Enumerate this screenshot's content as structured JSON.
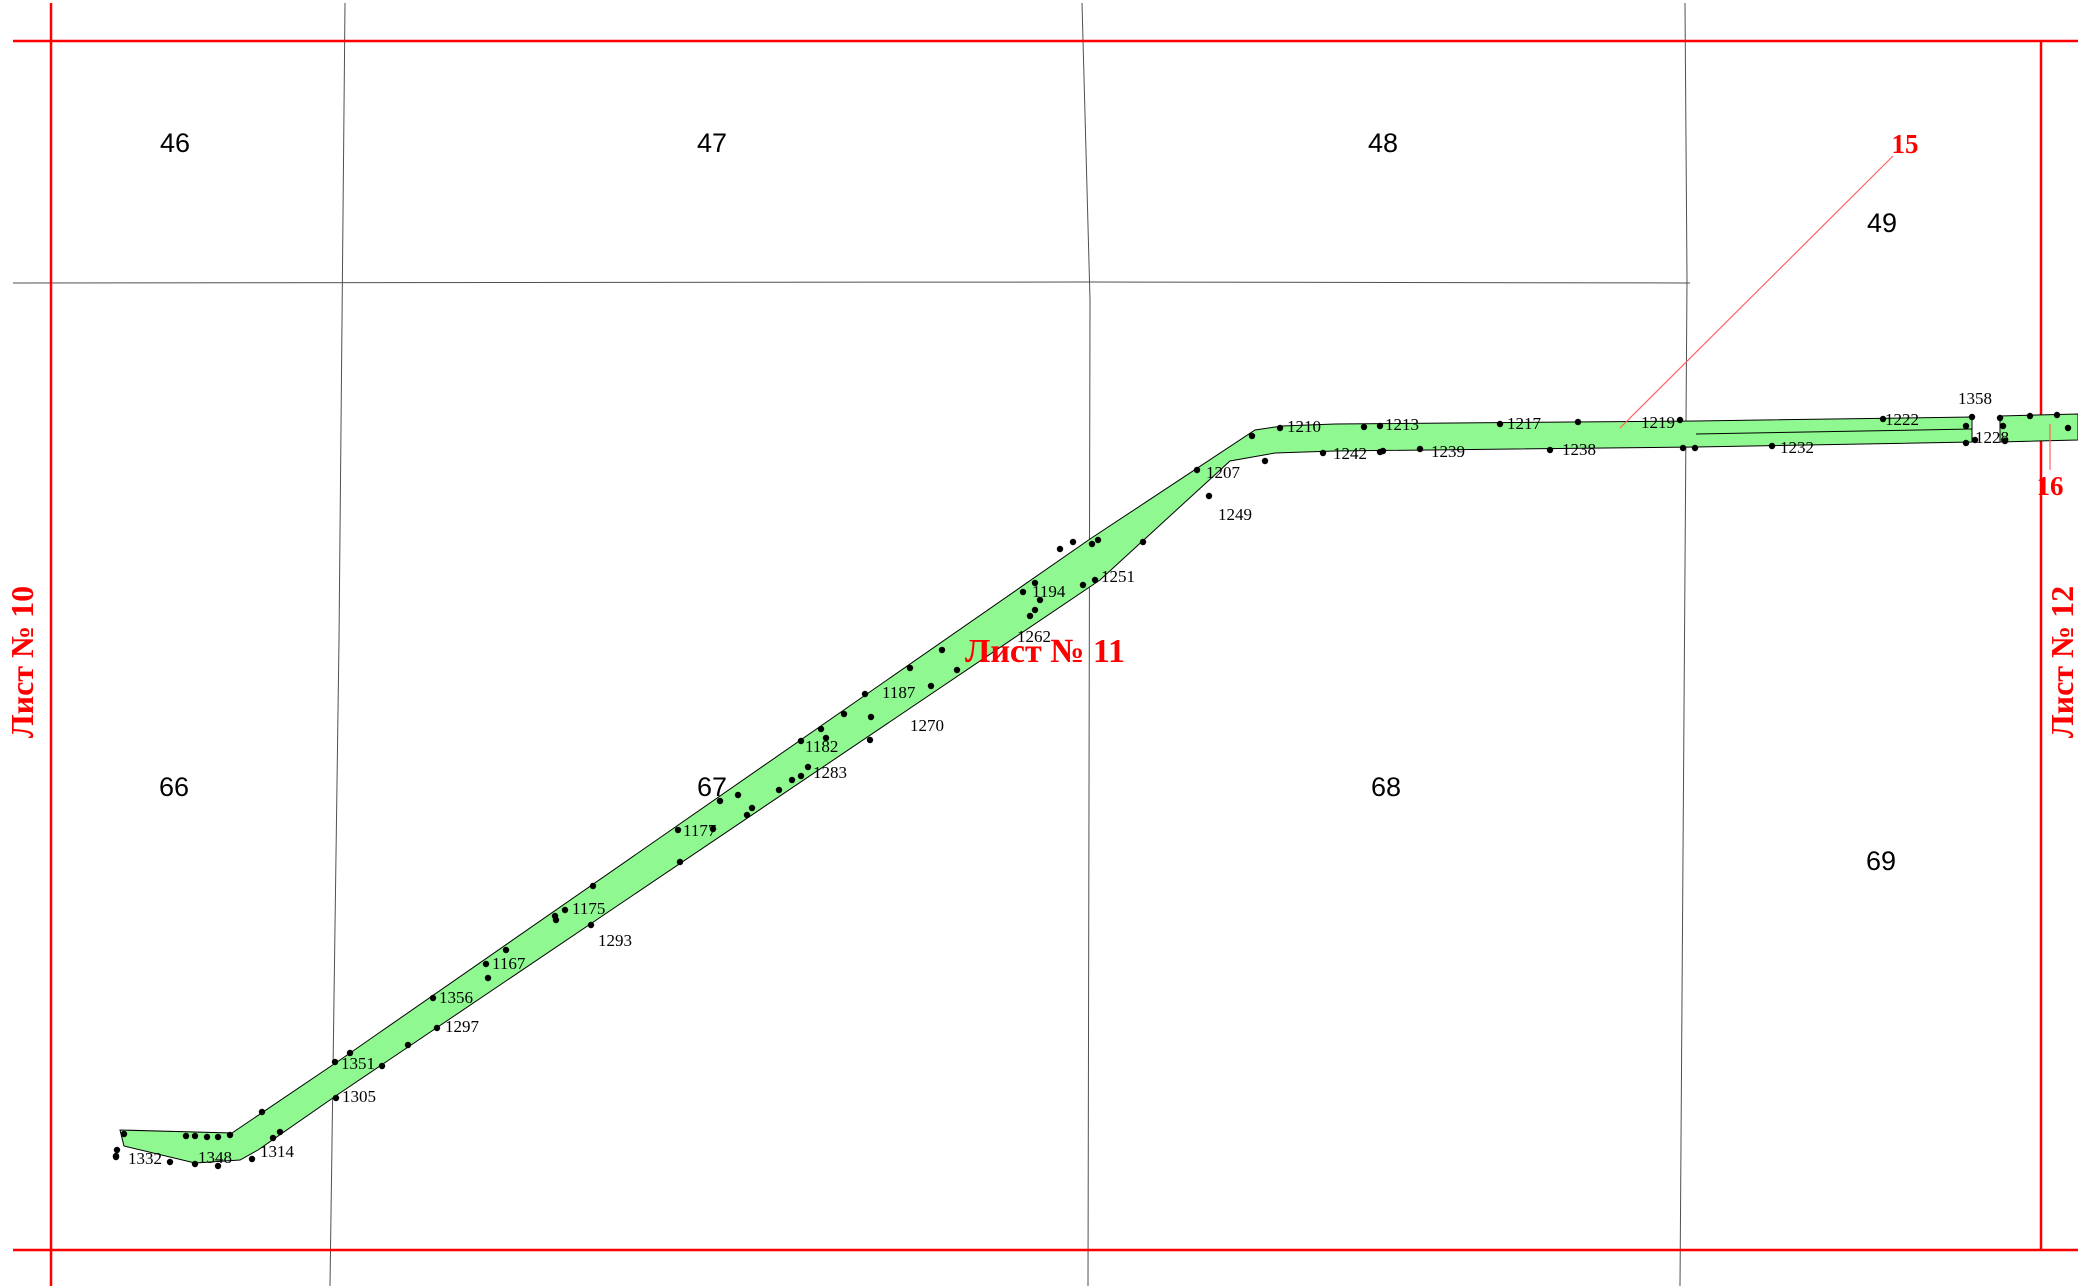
{
  "map": {
    "sheet": {
      "title": "Лист № 11",
      "left_neighbor": "Лист № 10",
      "right_neighbor": "Лист № 12"
    },
    "parcels": [
      "46",
      "47",
      "48",
      "49",
      "66",
      "67",
      "68",
      "69"
    ],
    "callouts": [
      "15",
      "16"
    ],
    "points": [
      "1332",
      "1348",
      "1314",
      "1305",
      "1351",
      "1297",
      "1356",
      "1167",
      "1293",
      "1175",
      "1177",
      "1283",
      "1182",
      "1270",
      "1187",
      "1262",
      "1194",
      "1251",
      "1249",
      "1207",
      "1210",
      "1242",
      "1213",
      "1239",
      "1217",
      "1238",
      "1219",
      "1232",
      "1222",
      "1358",
      "1228"
    ],
    "colors": {
      "boundary": "#ff0000",
      "strip_fill": "#90f890",
      "grid": "#505050",
      "points": "#000000"
    }
  }
}
